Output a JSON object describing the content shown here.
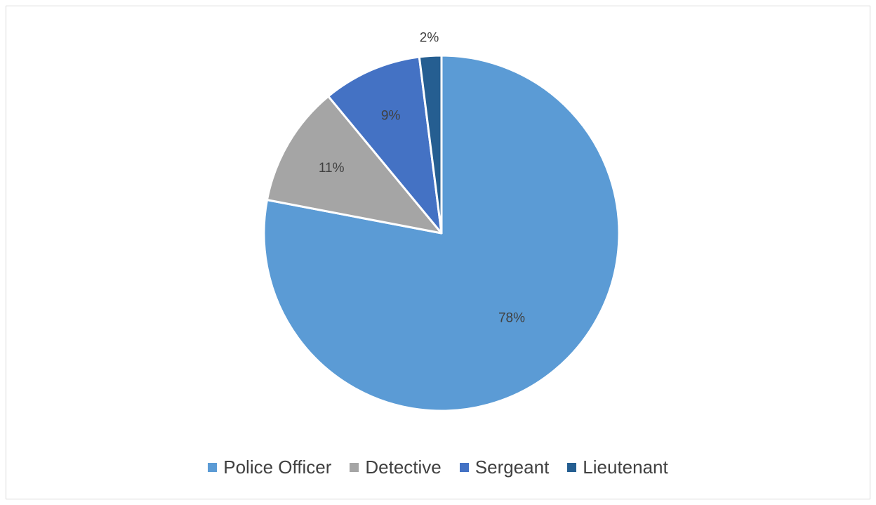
{
  "chart_data": {
    "type": "pie",
    "title": "",
    "categories": [
      "Police Officer",
      "Detective",
      "Sergeant",
      "Lieutenant"
    ],
    "values": [
      78,
      11,
      9,
      2
    ],
    "labels": [
      "78%",
      "11%",
      "9%",
      "2%"
    ],
    "colors": [
      "#5b9bd5",
      "#a5a5a5",
      "#4472c4",
      "#255e91"
    ],
    "start_angle_deg": 0,
    "direction": "clockwise",
    "legend": {
      "position": "bottom",
      "items": [
        {
          "label": "Police Officer",
          "color": "#5b9bd5"
        },
        {
          "label": "Detective",
          "color": "#a5a5a5"
        },
        {
          "label": "Sergeant",
          "color": "#4472c4"
        },
        {
          "label": "Lieutenant",
          "color": "#255e91"
        }
      ]
    }
  }
}
